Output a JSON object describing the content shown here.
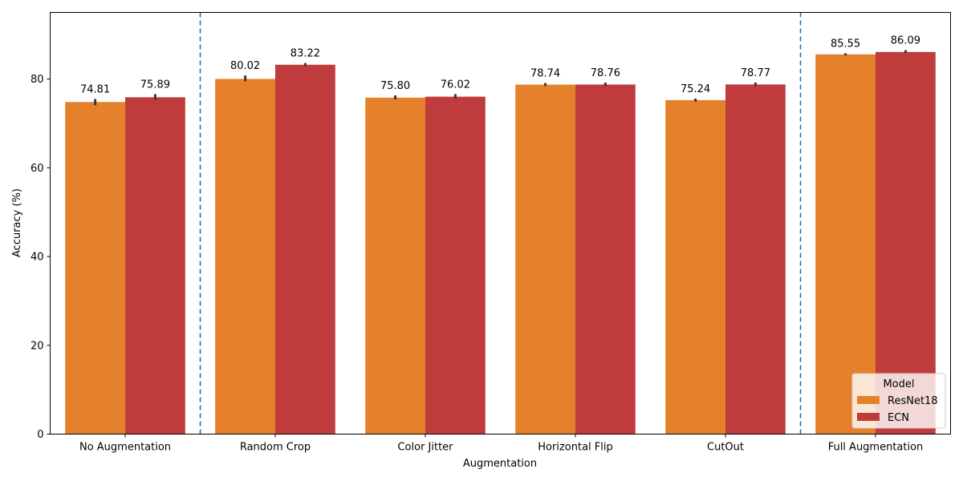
{
  "chart_data": {
    "type": "bar",
    "xlabel": "Augmentation",
    "ylabel": "Accuracy (%)",
    "ylim": [
      0,
      95
    ],
    "yticks": [
      0,
      20,
      40,
      60,
      80
    ],
    "categories": [
      "No Augmentation",
      "Random Crop",
      "Color Jitter",
      "Horizontal Flip",
      "CutOut",
      "Full Augmentation"
    ],
    "series": [
      {
        "name": "ResNet18",
        "color": "#e6812b",
        "values": [
          74.81,
          80.02,
          75.8,
          78.74,
          75.24,
          85.55
        ],
        "labels": [
          "74.81",
          "80.02",
          "75.80",
          "78.74",
          "75.24",
          "85.55"
        ],
        "err_low": [
          74.1,
          79.5,
          75.4,
          78.4,
          74.9,
          85.3
        ],
        "err_high": [
          75.5,
          80.8,
          76.3,
          79.1,
          75.6,
          85.8
        ]
      },
      {
        "name": "ECN",
        "color": "#c03c3c",
        "values": [
          75.89,
          83.22,
          76.02,
          78.76,
          78.77,
          86.09
        ],
        "labels": [
          "75.89",
          "83.22",
          "76.02",
          "78.76",
          "78.77",
          "86.09"
        ],
        "err_low": [
          75.3,
          82.9,
          75.6,
          78.4,
          78.4,
          85.8
        ],
        "err_high": [
          76.6,
          83.6,
          76.6,
          79.2,
          79.2,
          86.5
        ]
      }
    ],
    "separator_color": "#1f6fb2",
    "separators_after_category": [
      0,
      4
    ],
    "grid": false,
    "legend": {
      "title": "Model",
      "placement": "lower-right"
    }
  }
}
